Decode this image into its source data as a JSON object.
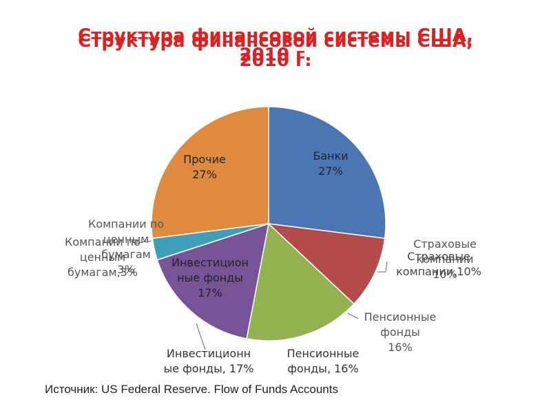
{
  "chart_data": {
    "type": "pie",
    "title": "Структура финансовой системы США, 2010 г.",
    "categories": [
      "Банки",
      "Страховые компании",
      "Пенсионные фонды",
      "Инвестиционные фонды",
      "Компании по ценным бумагам",
      "Прочие"
    ],
    "values": [
      27,
      10,
      16,
      17,
      3,
      27
    ],
    "unit": "%",
    "inner_labels": [
      "Банки\n27%",
      "",
      "",
      "Инвестицион\nные фонды\n17%",
      "",
      "Прочие\n27%"
    ],
    "outer_labels": [
      "Страховые\nкомпании\n10%",
      "Страховые\nкомпании,10%",
      "Пенсионные\nфонды\n16%",
      "Пенсионные\nфонды, 16%",
      "Инвестиционн\nые фонды, 17%",
      "Компании по\nценным\nбумагам\n3%",
      "Компании по\nценным\nбумагам,3%"
    ],
    "colors": [
      "#4a77b4",
      "#b24b4a",
      "#91b24f",
      "#765497",
      "#3e9fb8",
      "#e08a3e"
    ],
    "legend": "none"
  },
  "source": "Источник: US Federal Reserve. Flow of Funds Accounts"
}
